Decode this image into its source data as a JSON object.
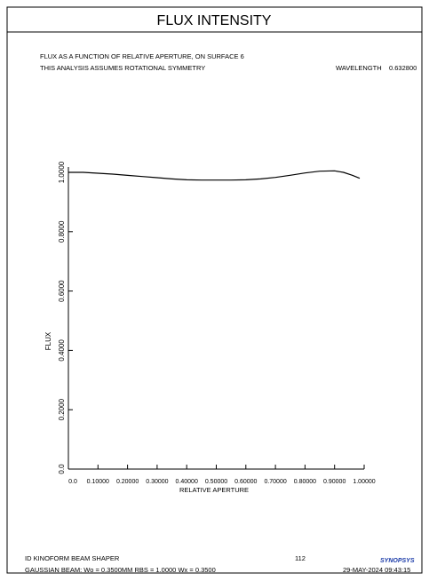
{
  "chart_data": {
    "type": "line",
    "title": "FLUX INTENSITY",
    "subtitle_lines": [
      "FLUX AS A FUNCTION OF RELATIVE APERTURE, ON SURFACE  6",
      "THIS ANALYSIS ASSUMES ROTATIONAL SYMMETRY"
    ],
    "wavelength_label": "WAVELENGTH",
    "wavelength": "0.632800",
    "x_label": "RELATIVE APERTURE",
    "y_label": "FLUX",
    "x": [
      0,
      0.05,
      0.1,
      0.15,
      0.2,
      0.25,
      0.3,
      0.35,
      0.4,
      0.45,
      0.5,
      0.55,
      0.6,
      0.65,
      0.7,
      0.75,
      0.8,
      0.85,
      0.9,
      0.93,
      0.96,
      0.985
    ],
    "series": [
      {
        "color": "#000000",
        "values": [
          1.0,
          1.0,
          0.997,
          0.994,
          0.99,
          0.986,
          0.982,
          0.978,
          0.975,
          0.974,
          0.974,
          0.974,
          0.975,
          0.978,
          0.983,
          0.99,
          0.998,
          1.004,
          1.005,
          1.0,
          0.99,
          0.98
        ]
      }
    ],
    "xlim": [
      0,
      1
    ],
    "ylim": [
      0,
      1
    ],
    "xticks": [
      {
        "value": 0,
        "label": "0.0"
      },
      {
        "value": 0.1,
        "label": "0.10000"
      },
      {
        "value": 0.2,
        "label": "0.20000"
      },
      {
        "value": 0.3,
        "label": "0.30000"
      },
      {
        "value": 0.4,
        "label": "0.40000"
      },
      {
        "value": 0.5,
        "label": "0.50000"
      },
      {
        "value": 0.6,
        "label": "0.60000"
      },
      {
        "value": 0.7,
        "label": "0.70000"
      },
      {
        "value": 0.8,
        "label": "0.80000"
      },
      {
        "value": 0.9,
        "label": "0.90000"
      },
      {
        "value": 1,
        "label": "1.00000"
      }
    ],
    "yticks": [
      {
        "value": 0,
        "label": "0.0"
      },
      {
        "value": 0.2,
        "label": "0.2000"
      },
      {
        "value": 0.4,
        "label": "0.4000"
      },
      {
        "value": 0.6,
        "label": "0.6000"
      },
      {
        "value": 0.8,
        "label": "0.8000"
      },
      {
        "value": 1,
        "label": "1.0000"
      }
    ],
    "footer": {
      "lens_title": "ID KINOFORM BEAM SHAPER",
      "page": "112",
      "logo": "SYNOPSYS",
      "beam": "GAUSSIAN BEAM: Wo =   0.3500MM   RBS =   1.0000 Wx =   0.3500",
      "timestamp": "29-MAY-2024 09:43:15"
    }
  }
}
